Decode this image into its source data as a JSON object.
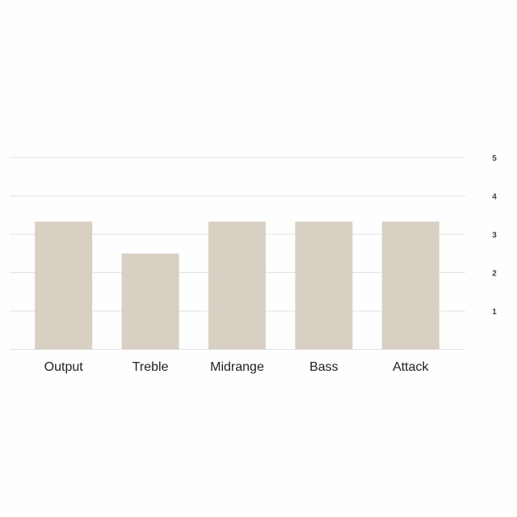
{
  "chart_data": {
    "type": "bar",
    "categories": [
      "Output",
      "Treble",
      "Midrange",
      "Bass",
      "Attack"
    ],
    "values": [
      3.33,
      2.5,
      3.33,
      3.33,
      3.33
    ],
    "title": "",
    "xlabel": "",
    "ylabel": "",
    "ylim": [
      0,
      5
    ],
    "yticks": [
      1,
      2,
      3,
      4,
      5
    ],
    "y_axis_side": "right",
    "grid": true,
    "bar_color": "#d9d0c4",
    "grid_color": "#e2e2e2"
  }
}
